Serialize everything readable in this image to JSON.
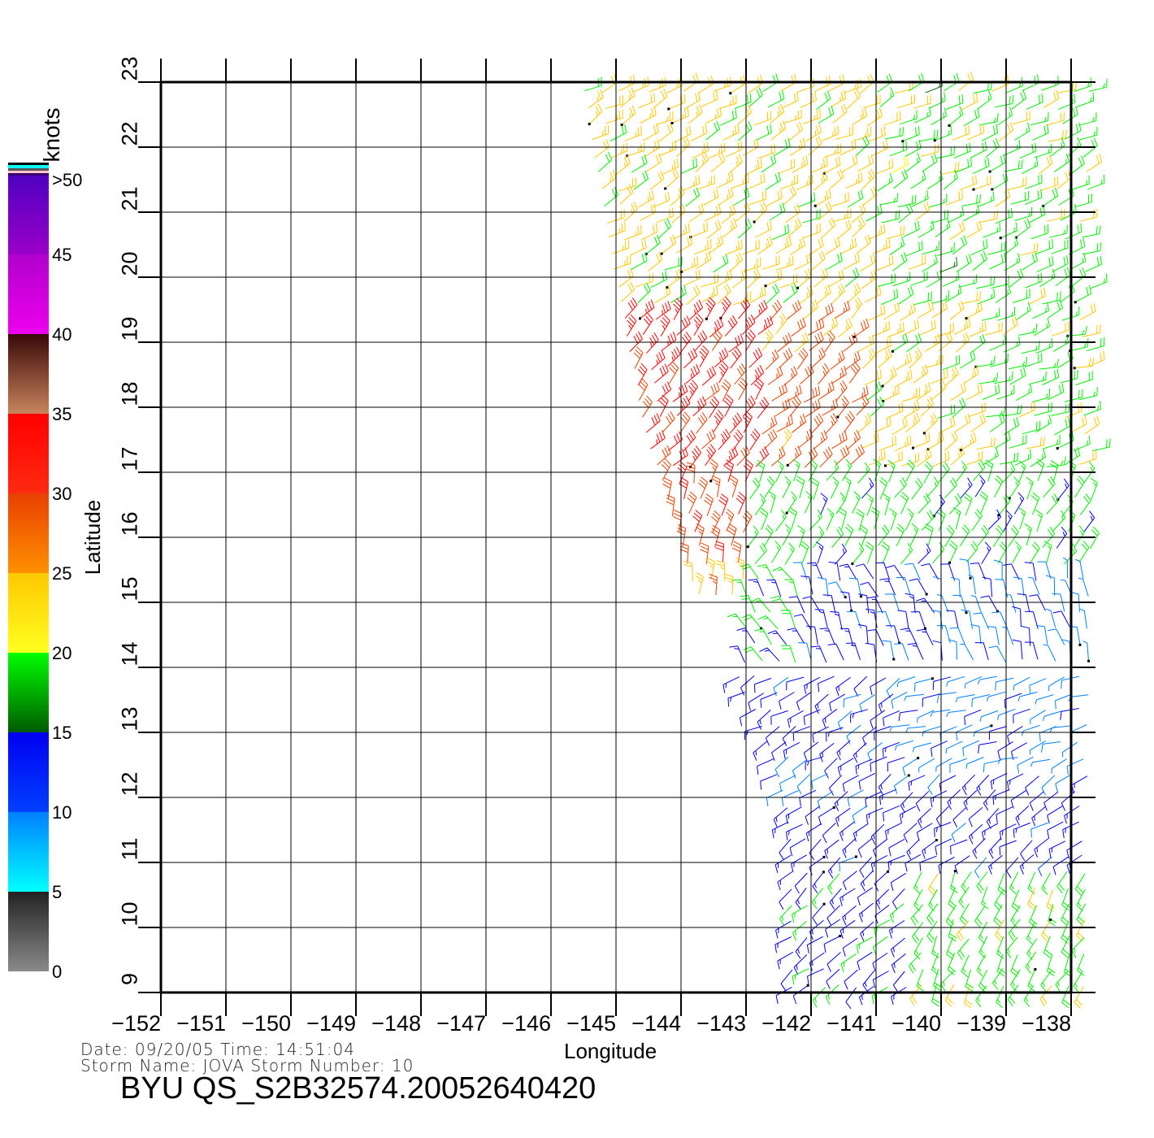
{
  "chart_data": {
    "type": "wind-barb-map",
    "title": "BYU QS_S2B32574.20052640420",
    "xlabel": "Longitude",
    "ylabel": "Latitude",
    "xlim": [
      -152,
      -138
    ],
    "ylim": [
      9,
      23
    ],
    "x_ticks": [
      "-152",
      "-151",
      "-150",
      "-149",
      "-148",
      "-147",
      "-146",
      "-145",
      "-144",
      "-143",
      "-142",
      "-141",
      "-140",
      "-139",
      "-138"
    ],
    "y_ticks": [
      "9",
      "10",
      "11",
      "12",
      "13",
      "14",
      "15",
      "16",
      "17",
      "18",
      "19",
      "20",
      "21",
      "22",
      "23"
    ],
    "grid": true,
    "colorbar": {
      "unit": "knots",
      "labels": [
        "0",
        "5",
        "10",
        "15",
        "20",
        "25",
        "30",
        "35",
        "40",
        "45",
        ">50"
      ],
      "values": [
        0,
        5,
        10,
        15,
        20,
        25,
        30,
        35,
        40,
        45,
        50
      ]
    },
    "swath_left_edge": [
      [
        23,
        -145.5
      ],
      [
        20,
        -145
      ],
      [
        19,
        -144.8
      ],
      [
        17.5,
        -144.5
      ],
      [
        16,
        -144
      ],
      [
        15,
        -143.7
      ],
      [
        14,
        -143.2
      ],
      [
        13,
        -142.7
      ],
      [
        12,
        -142.4
      ],
      [
        11,
        -142.3
      ],
      [
        10,
        -142.3
      ],
      [
        9.7,
        -142.3
      ]
    ],
    "swath_right_lon": -137.7,
    "wind_regions": [
      {
        "lat": [
          19.5,
          23
        ],
        "lon": [
          -146,
          -141
        ],
        "speed_kt": 22,
        "dir_from_deg": 60
      },
      {
        "lat": [
          19.5,
          23
        ],
        "lon": [
          -141,
          -137
        ],
        "speed_kt": 18,
        "dir_from_deg": 65
      },
      {
        "lat": [
          17,
          19.5
        ],
        "lon": [
          -146,
          -142.8
        ],
        "speed_kt": 32,
        "dir_from_deg": 40
      },
      {
        "lat": [
          17,
          19.5
        ],
        "lon": [
          -142.8,
          -141.3
        ],
        "speed_kt": 27,
        "dir_from_deg": 50
      },
      {
        "lat": [
          17,
          19.5
        ],
        "lon": [
          -141.3,
          -139.5
        ],
        "speed_kt": 22,
        "dir_from_deg": 60
      },
      {
        "lat": [
          17,
          19.5
        ],
        "lon": [
          -139.5,
          -137
        ],
        "speed_kt": 18,
        "dir_from_deg": 70
      },
      {
        "lat": [
          15.5,
          17
        ],
        "lon": [
          -146,
          -143
        ],
        "speed_kt": 29,
        "dir_from_deg": 15
      },
      {
        "lat": [
          15.5,
          17
        ],
        "lon": [
          -143,
          -137
        ],
        "speed_kt": 17,
        "dir_from_deg": 30
      },
      {
        "lat": [
          15,
          15.5
        ],
        "lon": [
          -146,
          -143
        ],
        "speed_kt": 24,
        "dir_from_deg": 0
      },
      {
        "lat": [
          14,
          15.5
        ],
        "lon": [
          -143,
          -142.2
        ],
        "speed_kt": 17,
        "dir_from_deg": 330
      },
      {
        "lat": [
          14,
          15.5
        ],
        "lon": [
          -142.2,
          -140
        ],
        "speed_kt": 12,
        "dir_from_deg": 340
      },
      {
        "lat": [
          14,
          15.5
        ],
        "lon": [
          -140,
          -137
        ],
        "speed_kt": 9,
        "dir_from_deg": 345
      },
      {
        "lat": [
          12.5,
          14
        ],
        "lon": [
          -144,
          -140.5
        ],
        "speed_kt": 12,
        "dir_from_deg": 240
      },
      {
        "lat": [
          12.5,
          14
        ],
        "lon": [
          -140.5,
          -137
        ],
        "speed_kt": 8,
        "dir_from_deg": 250
      },
      {
        "lat": [
          11,
          12.5
        ],
        "lon": [
          -144,
          -137
        ],
        "speed_kt": 12,
        "dir_from_deg": 235
      },
      {
        "lat": [
          9,
          11
        ],
        "lon": [
          -144,
          -140.5
        ],
        "speed_kt": 13,
        "dir_from_deg": 230
      },
      {
        "lat": [
          9,
          11
        ],
        "lon": [
          -140.5,
          -137
        ],
        "speed_kt": 18,
        "dir_from_deg": 210
      }
    ]
  },
  "footer": {
    "date_line": "Date: 09/20/05   Time: 14:51:04",
    "storm_line": "Storm  Name: JOVA   Storm  Number: 10"
  }
}
